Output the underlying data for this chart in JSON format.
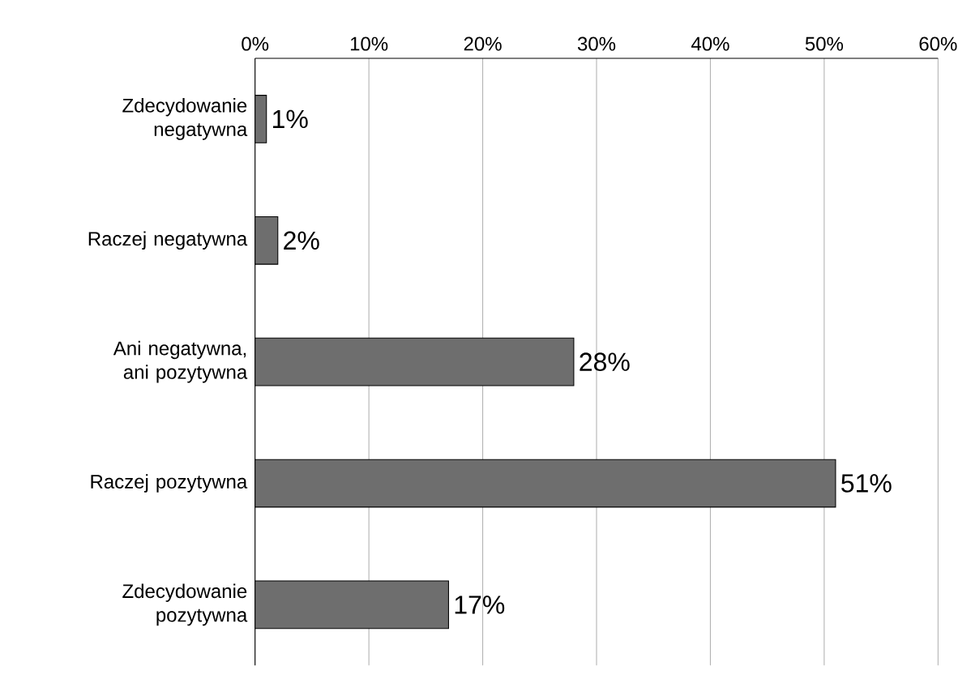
{
  "chart_data": {
    "type": "bar",
    "orientation": "horizontal",
    "categories": [
      "Zdecydowanie negatywna",
      "Raczej negatywna",
      "Ani negatywna, ani pozytywna",
      "Raczej pozytywna",
      "Zdecydowanie pozytywna"
    ],
    "values": [
      1,
      2,
      28,
      51,
      17
    ],
    "value_labels": [
      "1%",
      "2%",
      "28%",
      "51%",
      "17%"
    ],
    "color": "#6e6e6e",
    "xlim": [
      0,
      60
    ],
    "xticks": [
      {
        "value": 0,
        "label": "0%"
      },
      {
        "value": 10,
        "label": "10%"
      },
      {
        "value": 20,
        "label": "20%"
      },
      {
        "value": 30,
        "label": "30%"
      },
      {
        "value": 40,
        "label": "40%"
      },
      {
        "value": 50,
        "label": "50%"
      },
      {
        "value": 60,
        "label": "60%"
      }
    ],
    "grid": "x"
  }
}
